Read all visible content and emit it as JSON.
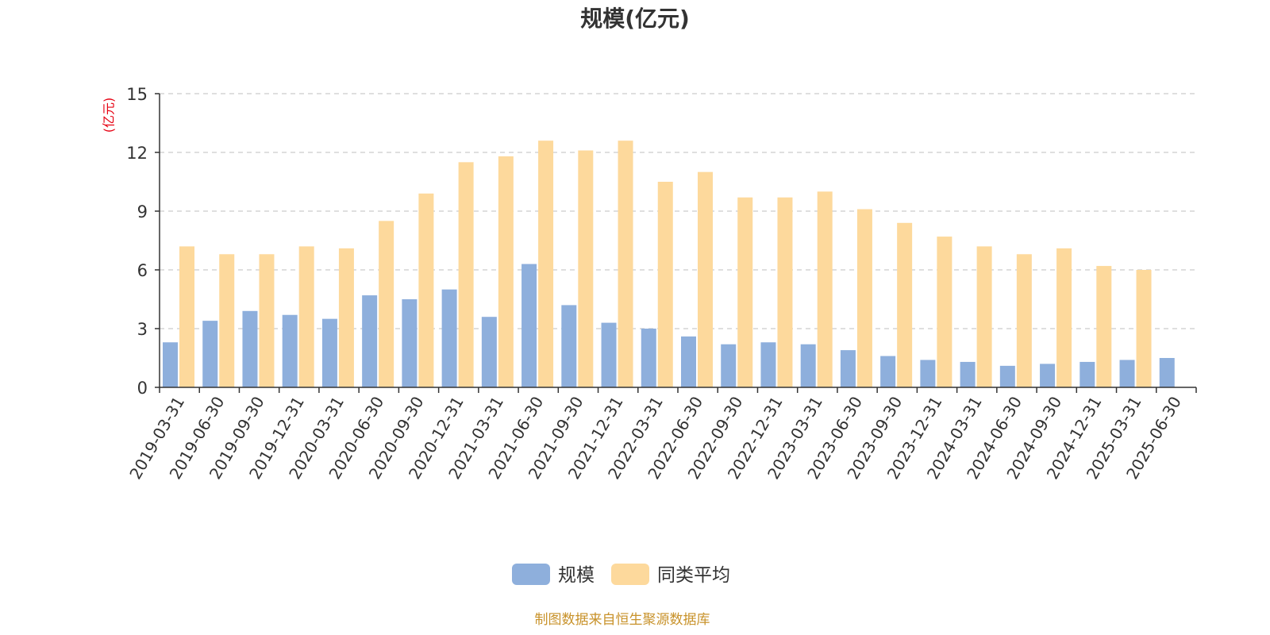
{
  "chart_data": {
    "type": "bar",
    "title": "规模(亿元)",
    "ylabel": "(亿元)",
    "ylim": [
      0,
      15
    ],
    "yticks": [
      "0",
      "3",
      "6",
      "9",
      "12",
      "15"
    ],
    "grid": true,
    "legend_position": "bottom-center",
    "categories": [
      "2019-03-31",
      "2019-06-30",
      "2019-09-30",
      "2019-12-31",
      "2020-03-31",
      "2020-06-30",
      "2020-09-30",
      "2020-12-31",
      "2021-03-31",
      "2021-06-30",
      "2021-09-30",
      "2021-12-31",
      "2022-03-31",
      "2022-06-30",
      "2022-09-30",
      "2022-12-31",
      "2023-03-31",
      "2023-06-30",
      "2023-09-30",
      "2023-12-31",
      "2024-03-31",
      "2024-06-30",
      "2024-09-30",
      "2024-12-31",
      "2025-03-31",
      "2025-06-30"
    ],
    "series": [
      {
        "name": "规模",
        "color": "#8eafdc",
        "values": [
          2.3,
          3.4,
          3.9,
          3.7,
          3.5,
          4.7,
          4.5,
          5.0,
          3.6,
          6.3,
          4.2,
          3.3,
          3.0,
          2.6,
          2.2,
          2.3,
          2.2,
          1.9,
          1.6,
          1.4,
          1.3,
          1.1,
          1.2,
          1.3,
          1.4,
          1.5
        ]
      },
      {
        "name": "同类平均",
        "color": "#fdd99c",
        "values": [
          7.2,
          6.8,
          6.8,
          7.2,
          7.1,
          8.5,
          9.9,
          11.5,
          11.8,
          12.6,
          12.1,
          12.6,
          10.5,
          11.0,
          9.7,
          9.7,
          10.0,
          9.1,
          8.4,
          7.7,
          7.2,
          6.8,
          7.1,
          6.2,
          6.0,
          null
        ]
      }
    ]
  },
  "footer": {
    "source": "制图数据来自恒生聚源数据库"
  }
}
